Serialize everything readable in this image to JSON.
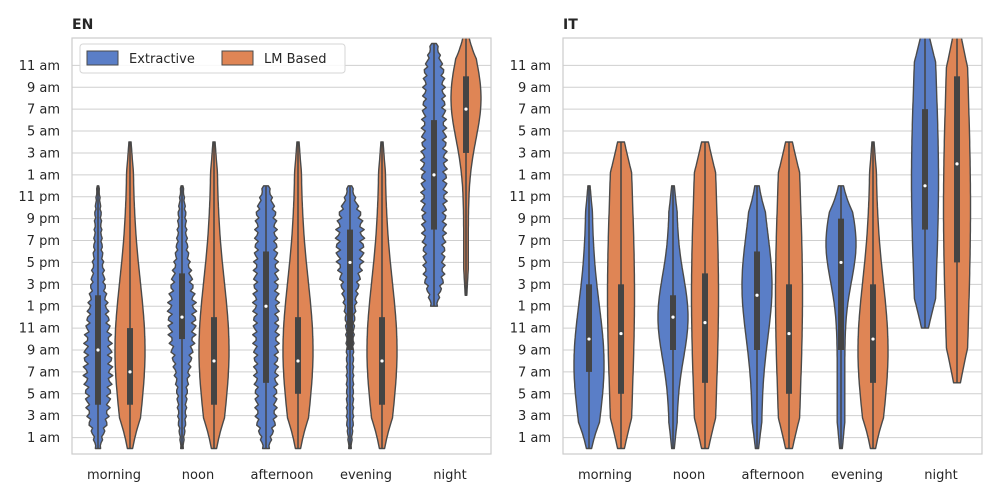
{
  "colors": {
    "extractive": "#5a7ec7",
    "lm": "#df8555",
    "edge": "#4a4a4a",
    "grid": "#cfcfcf",
    "box": "#444444"
  },
  "legend": {
    "items": [
      "Extractive",
      "LM Based"
    ],
    "placement": "upper-left"
  },
  "chart_data": [
    {
      "type": "violin",
      "title": "EN",
      "categories": [
        "morning",
        "noon",
        "afternoon",
        "evening",
        "night"
      ],
      "y_tick_labels": [
        "1 am",
        "3 am",
        "5 am",
        "7 am",
        "9 am",
        "11 am",
        "1 pm",
        "3 pm",
        "5 pm",
        "7 pm",
        "9 pm",
        "11 pm",
        "1 am",
        "3 am",
        "5 am",
        "7 am",
        "9 am",
        "11 am"
      ],
      "y_tick_values": [
        1,
        3,
        5,
        7,
        9,
        11,
        13,
        15,
        17,
        19,
        21,
        23,
        25,
        27,
        29,
        31,
        33,
        35
      ],
      "ylim": [
        -0.5,
        37.5
      ],
      "grid": true,
      "series": [
        {
          "name": "Extractive",
          "violins": [
            {
              "min": 0,
              "max": 24,
              "q1": 4,
              "median": 9,
              "q3": 14,
              "shape": "low",
              "wiggle": true
            },
            {
              "min": 0,
              "max": 24,
              "q1": 10,
              "median": 12,
              "q3": 16,
              "shape": "mid12",
              "wiggle": true
            },
            {
              "min": 0,
              "max": 24,
              "q1": 6,
              "median": 13,
              "q3": 18,
              "shape": "flat",
              "wiggle": true
            },
            {
              "min": 0,
              "max": 24,
              "q1": 9,
              "median": 17,
              "q3": 20,
              "shape": "evening",
              "wiggle": true
            },
            {
              "min": 13,
              "max": 37,
              "q1": 20,
              "median": 25,
              "q3": 30,
              "shape": "flat",
              "wiggle": true
            }
          ]
        },
        {
          "name": "LM Based",
          "violins": [
            {
              "min": 0,
              "max": 28,
              "q1": 4,
              "median": 7,
              "q3": 11,
              "shape": "low"
            },
            {
              "min": 0,
              "max": 28,
              "q1": 4,
              "median": 8,
              "q3": 12,
              "shape": "low"
            },
            {
              "min": 0,
              "max": 28,
              "q1": 5,
              "median": 8,
              "q3": 12,
              "shape": "low"
            },
            {
              "min": 0,
              "max": 28,
              "q1": 4,
              "median": 8,
              "q3": 12,
              "shape": "low"
            },
            {
              "min": 14,
              "max": 38,
              "q1": 27,
              "median": 31,
              "q3": 34,
              "shape": "high"
            }
          ]
        }
      ]
    },
    {
      "type": "violin",
      "title": "IT",
      "categories": [
        "morning",
        "noon",
        "afternoon",
        "evening",
        "night"
      ],
      "y_tick_labels": [
        "1 am",
        "3 am",
        "5 am",
        "7 am",
        "9 am",
        "11 am",
        "1 pm",
        "3 pm",
        "5 pm",
        "7 pm",
        "9 pm",
        "11 pm",
        "1 am",
        "3 am",
        "5 am",
        "7 am",
        "9 am",
        "11 am"
      ],
      "y_tick_values": [
        1,
        3,
        5,
        7,
        9,
        11,
        13,
        15,
        17,
        19,
        21,
        23,
        25,
        27,
        29,
        31,
        33,
        35
      ],
      "ylim": [
        -0.5,
        37.5
      ],
      "grid": true,
      "series": [
        {
          "name": "Extractive",
          "violins": [
            {
              "min": 0,
              "max": 24,
              "q1": 7,
              "median": 10,
              "q3": 15,
              "shape": "low"
            },
            {
              "min": 0,
              "max": 24,
              "q1": 9,
              "median": 12,
              "q3": 14,
              "shape": "mid12"
            },
            {
              "min": 0,
              "max": 24,
              "q1": 9,
              "median": 14,
              "q3": 18,
              "shape": "mid16"
            },
            {
              "min": 0,
              "max": 24,
              "q1": 9,
              "median": 17,
              "q3": 21,
              "shape": "evening"
            },
            {
              "min": 11,
              "max": 38,
              "q1": 20,
              "median": 24,
              "q3": 31,
              "shape": "flat"
            }
          ]
        },
        {
          "name": "LM Based",
          "violins": [
            {
              "min": 0,
              "max": 28,
              "q1": 5,
              "median": 10.5,
              "q3": 15,
              "shape": "flat"
            },
            {
              "min": 0,
              "max": 28,
              "q1": 6,
              "median": 11.5,
              "q3": 16,
              "shape": "flat"
            },
            {
              "min": 0,
              "max": 28,
              "q1": 5,
              "median": 10.5,
              "q3": 15,
              "shape": "flat"
            },
            {
              "min": 0,
              "max": 28,
              "q1": 6,
              "median": 10,
              "q3": 15,
              "shape": "low"
            },
            {
              "min": 6,
              "max": 38,
              "q1": 17,
              "median": 26,
              "q3": 34,
              "shape": "flat"
            }
          ]
        }
      ]
    }
  ]
}
